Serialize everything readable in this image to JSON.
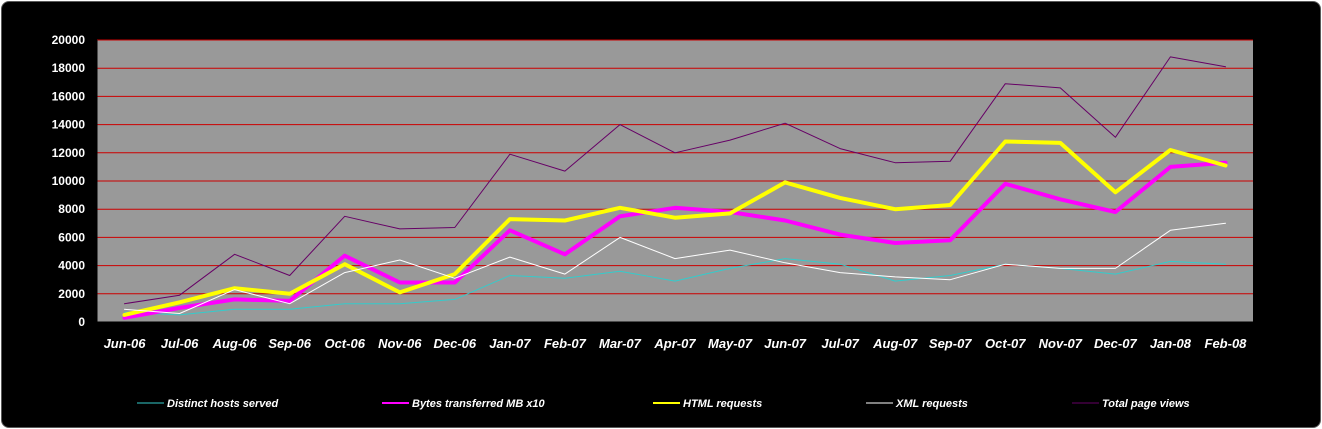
{
  "chart_data": {
    "type": "line",
    "categories": [
      "Jun-06",
      "Jul-06",
      "Aug-06",
      "Sep-06",
      "Oct-06",
      "Nov-06",
      "Dec-06",
      "Jan-07",
      "Feb-07",
      "Mar-07",
      "Apr-07",
      "May-07",
      "Jun-07",
      "Jul-07",
      "Aug-07",
      "Sep-07",
      "Oct-07",
      "Nov-07",
      "Dec-07",
      "Jan-08",
      "Feb-08"
    ],
    "ylim": [
      0,
      20000
    ],
    "yticks": [
      0,
      2000,
      4000,
      6000,
      8000,
      10000,
      12000,
      14000,
      16000,
      18000,
      20000
    ],
    "grid": true,
    "legend_position": "bottom",
    "colors": {
      "plot_background": "#999999",
      "page_background": "#000000",
      "gridline": "#cc0000"
    },
    "series": [
      {
        "name": "Distinct hosts served",
        "color": "#33cccc",
        "width": 1,
        "values": [
          700,
          500,
          900,
          900,
          1300,
          1300,
          1600,
          3300,
          3100,
          3600,
          2900,
          3800,
          4500,
          4100,
          2900,
          3300,
          4100,
          3800,
          3400,
          4300,
          4100
        ]
      },
      {
        "name": "Bytes transferred MB x10",
        "color": "#ff00ff",
        "width": 4,
        "values": [
          300,
          1000,
          1600,
          1500,
          4700,
          2800,
          2800,
          6500,
          4800,
          7500,
          8100,
          7800,
          7200,
          6200,
          5600,
          5800,
          9800,
          8700,
          7800,
          11000,
          11300
        ]
      },
      {
        "name": "HTML requests",
        "color": "#ffff00",
        "width": 4,
        "values": [
          500,
          1400,
          2400,
          2000,
          4100,
          2100,
          3400,
          7300,
          7200,
          8100,
          7400,
          7700,
          9900,
          8800,
          8000,
          8300,
          12800,
          12700,
          9200,
          12200,
          11100
        ]
      },
      {
        "name": "XML requests",
        "color": "#ffffff",
        "width": 1,
        "values": [
          900,
          600,
          2300,
          1300,
          3500,
          4400,
          3100,
          4600,
          3400,
          6000,
          4500,
          5100,
          4200,
          3500,
          3200,
          3000,
          4100,
          3800,
          3800,
          6500,
          7000
        ]
      },
      {
        "name": "Total page views",
        "color": "#660066",
        "width": 1,
        "values": [
          1300,
          1900,
          4800,
          3300,
          7500,
          6600,
          6700,
          11900,
          10700,
          14000,
          12000,
          12900,
          14100,
          12300,
          11300,
          11400,
          16900,
          16600,
          13100,
          18800,
          18100
        ]
      }
    ]
  }
}
